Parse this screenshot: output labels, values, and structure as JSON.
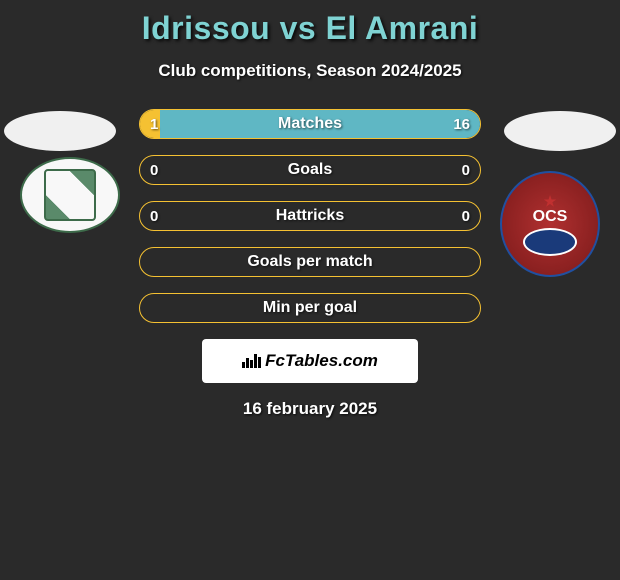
{
  "header": {
    "title": "Idrissou vs El Amrani",
    "subtitle": "Club competitions, Season 2024/2025"
  },
  "stats": [
    {
      "label": "Matches",
      "left_value": "1",
      "right_value": "16",
      "left_pct": 6,
      "right_pct": 94,
      "left_color": "#f5c132",
      "right_color": "#5fb7c4",
      "border_color": "#f5c132"
    },
    {
      "label": "Goals",
      "left_value": "0",
      "right_value": "0",
      "left_pct": 50,
      "right_pct": 50,
      "left_color": "transparent",
      "right_color": "transparent",
      "border_color": "#f5c132"
    },
    {
      "label": "Hattricks",
      "left_value": "0",
      "right_value": "0",
      "left_pct": 50,
      "right_pct": 50,
      "left_color": "transparent",
      "right_color": "transparent",
      "border_color": "#f5c132"
    },
    {
      "label": "Goals per match",
      "left_value": "",
      "right_value": "",
      "left_pct": 50,
      "right_pct": 50,
      "left_color": "transparent",
      "right_color": "transparent",
      "border_color": "#f5c132"
    },
    {
      "label": "Min per goal",
      "left_value": "",
      "right_value": "",
      "left_pct": 50,
      "right_pct": 50,
      "left_color": "transparent",
      "right_color": "transparent",
      "border_color": "#f5c132"
    }
  ],
  "club_right_text": "OCS",
  "footer": {
    "site": "FcTables.com",
    "date": "16 february 2025"
  },
  "colors": {
    "background": "#2a2a2a",
    "title": "#7fd3d3",
    "text": "#ffffff",
    "left_series": "#f5c132",
    "right_series": "#5fb7c4"
  }
}
